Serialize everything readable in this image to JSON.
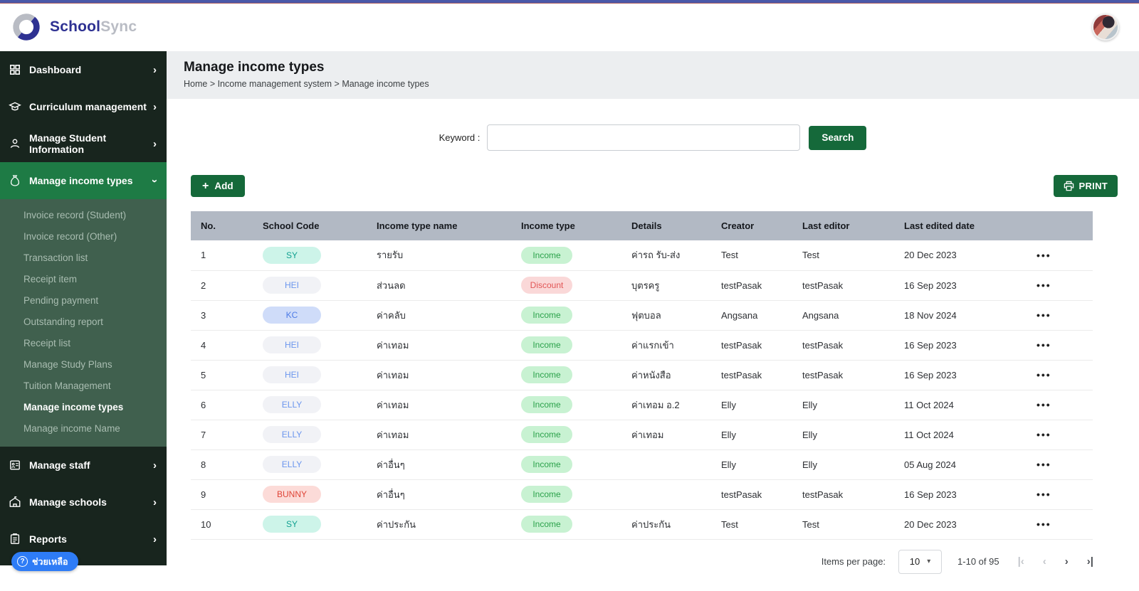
{
  "topbar": {
    "brand_bold": "School",
    "brand_light": "Sync"
  },
  "colors": {
    "top_strip": "#4a58a8",
    "top_strip_border": "#a85b5f",
    "sidebar_bg": "#18251e",
    "sidebar_active": "#1e7b45",
    "submenu_bg": "#40604e",
    "submenu_text": "#a9bdb1",
    "button_green": "#15693a",
    "table_header_bg": "#b2b9c4",
    "help_blue": "#2e7cf6",
    "brand_navy": "#2e3192",
    "brand_gray": "#b9bcc4",
    "pill_teal_bg": "#cdf4e9",
    "pill_teal_text": "#12a191",
    "pill_gray_bg": "#f1f2f6",
    "pill_gray_text": "#6b96ee",
    "pill_blue_bg": "#cfdcf9",
    "pill_blue_text": "#4d7be6",
    "pill_pink_bg": "#fcdbd8",
    "pill_pink_text": "#df4538",
    "tag_income_bg": "#c8f2d2",
    "tag_income_text": "#2ba14a",
    "tag_discount_bg": "#fad8d8",
    "tag_discount_text": "#e25555"
  },
  "icons": {
    "plus": "+",
    "chevron_right": "›",
    "more": "•••",
    "caret_down": "▾",
    "help_q": "?"
  },
  "sidebar": {
    "top_items": [
      {
        "label": "Dashboard",
        "icon": "grid-icon",
        "chevron": "right",
        "active": false
      },
      {
        "label": "Curriculum management",
        "icon": "graduation-cap-icon",
        "chevron": "right",
        "active": false
      },
      {
        "label": "Manage Student Information",
        "icon": "student-icon",
        "chevron": "right",
        "active": false
      },
      {
        "label": "Manage income types",
        "icon": "money-bag-icon",
        "chevron": "down",
        "active": true
      }
    ],
    "submenu_items": [
      {
        "label": "Invoice record (Student)",
        "active": false
      },
      {
        "label": "Invoice record (Other)",
        "active": false
      },
      {
        "label": "Transaction list",
        "active": false
      },
      {
        "label": "Receipt item",
        "active": false
      },
      {
        "label": "Pending payment",
        "active": false
      },
      {
        "label": "Outstanding report",
        "active": false
      },
      {
        "label": "Receipt list",
        "active": false
      },
      {
        "label": "Manage Study Plans",
        "active": false
      },
      {
        "label": "Tuition Management",
        "active": false
      },
      {
        "label": "Manage income types",
        "active": true
      },
      {
        "label": "Manage income Name",
        "active": false
      }
    ],
    "bottom_items": [
      {
        "label": "Manage staff",
        "icon": "id-badge-icon",
        "chevron": "right",
        "active": false
      },
      {
        "label": "Manage schools",
        "icon": "school-icon",
        "chevron": "right",
        "active": false
      },
      {
        "label": "Reports",
        "icon": "clipboard-icon",
        "chevron": "right",
        "active": false
      }
    ],
    "help_label": "ช่วยเหลือ"
  },
  "header": {
    "title": "Manage income types",
    "breadcrumb": "Home > Income management system > Manage income types"
  },
  "search": {
    "label": "Keyword :",
    "value": "",
    "button": "Search"
  },
  "toolbar": {
    "add_label": "Add",
    "print_label": "PRINT"
  },
  "table": {
    "columns": [
      "No.",
      "School Code",
      "Income type name",
      "Income type",
      "Details",
      "Creator",
      "Last editor",
      "Last edited date",
      ""
    ],
    "rows": [
      {
        "no": "1",
        "code": "SY",
        "code_style": "teal",
        "name": "รายรับ",
        "type": "Income",
        "type_style": "income",
        "details": "ค่ารถ รับ-ส่ง",
        "creator": "Test",
        "editor": "Test",
        "date": "20 Dec 2023"
      },
      {
        "no": "2",
        "code": "HEI",
        "code_style": "gray",
        "name": "ส่วนลด",
        "type": "Discount",
        "type_style": "discount",
        "details": "บุตรครู",
        "creator": "testPasak",
        "editor": "testPasak",
        "date": "16 Sep 2023"
      },
      {
        "no": "3",
        "code": "KC",
        "code_style": "blue",
        "name": "ค่าคลับ",
        "type": "Income",
        "type_style": "income",
        "details": "ฟุตบอล",
        "creator": "Angsana",
        "editor": "Angsana",
        "date": "18 Nov 2024"
      },
      {
        "no": "4",
        "code": "HEI",
        "code_style": "gray",
        "name": "ค่าเทอม",
        "type": "Income",
        "type_style": "income",
        "details": "ค่าแรกเข้า",
        "creator": "testPasak",
        "editor": "testPasak",
        "date": "16 Sep 2023"
      },
      {
        "no": "5",
        "code": "HEI",
        "code_style": "gray",
        "name": "ค่าเทอม",
        "type": "Income",
        "type_style": "income",
        "details": "ค่าหนังสือ",
        "creator": "testPasak",
        "editor": "testPasak",
        "date": "16 Sep 2023"
      },
      {
        "no": "6",
        "code": "ELLY",
        "code_style": "gray",
        "name": "ค่าเทอม",
        "type": "Income",
        "type_style": "income",
        "details": "ค่าเทอม อ.2",
        "creator": "Elly",
        "editor": "Elly",
        "date": "11 Oct 2024"
      },
      {
        "no": "7",
        "code": "ELLY",
        "code_style": "gray",
        "name": "ค่าเทอม",
        "type": "Income",
        "type_style": "income",
        "details": "ค่าเทอม",
        "creator": "Elly",
        "editor": "Elly",
        "date": "11 Oct 2024"
      },
      {
        "no": "8",
        "code": "ELLY",
        "code_style": "gray",
        "name": "ค่าอื่นๆ",
        "type": "Income",
        "type_style": "income",
        "details": "",
        "creator": "Elly",
        "editor": "Elly",
        "date": "05 Aug 2024"
      },
      {
        "no": "9",
        "code": "BUNNY",
        "code_style": "pink",
        "name": "ค่าอื่นๆ",
        "type": "Income",
        "type_style": "income",
        "details": "",
        "creator": "testPasak",
        "editor": "testPasak",
        "date": "16 Sep 2023"
      },
      {
        "no": "10",
        "code": "SY",
        "code_style": "teal",
        "name": "ค่าประกัน",
        "type": "Income",
        "type_style": "income",
        "details": "ค่าประกัน",
        "creator": "Test",
        "editor": "Test",
        "date": "20 Dec 2023"
      }
    ]
  },
  "pagination": {
    "items_per_page_label": "Items per page:",
    "page_size": "10",
    "range": "1-10 of 95"
  }
}
